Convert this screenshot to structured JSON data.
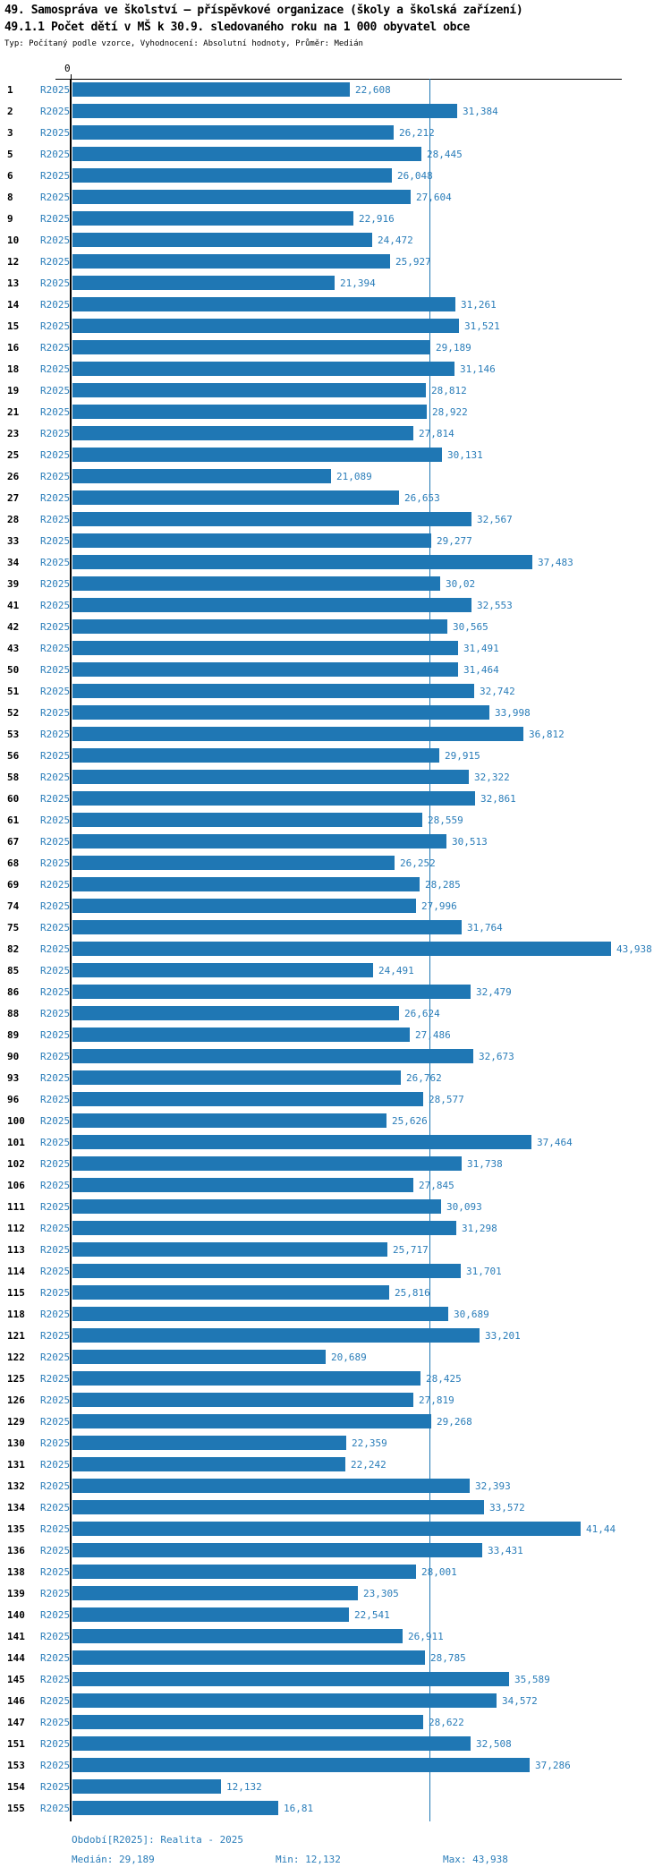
{
  "header": {
    "title1": "49. Samospráva ve školství – příspěvkové organizace (školy a školská zařízení)",
    "title2": "49.1.1 Počet dětí v MŠ k 30.9. sledovaného roku na 1 000 obyvatel obce",
    "subtitle": "Typ: Počítaný podle vzorce, Vyhodnocení: Absolutní hodnoty, Průměr: Medián"
  },
  "chart_data": {
    "type": "bar",
    "orientation": "horizontal",
    "series_label": "R2025",
    "zero_tick_label": "0",
    "xlim": [
      0,
      45
    ],
    "median": 29.189,
    "min": 12.132,
    "max": 43.938,
    "median_line": true,
    "categories": [
      "1",
      "2",
      "3",
      "5",
      "6",
      "8",
      "9",
      "10",
      "12",
      "13",
      "14",
      "15",
      "16",
      "18",
      "19",
      "21",
      "23",
      "25",
      "26",
      "27",
      "28",
      "33",
      "34",
      "39",
      "41",
      "42",
      "43",
      "50",
      "51",
      "52",
      "53",
      "56",
      "58",
      "60",
      "61",
      "67",
      "68",
      "69",
      "74",
      "75",
      "82",
      "85",
      "86",
      "88",
      "89",
      "90",
      "93",
      "96",
      "100",
      "101",
      "102",
      "106",
      "111",
      "112",
      "113",
      "114",
      "115",
      "118",
      "121",
      "122",
      "125",
      "126",
      "129",
      "130",
      "131",
      "132",
      "134",
      "135",
      "136",
      "138",
      "139",
      "140",
      "141",
      "144",
      "145",
      "146",
      "147",
      "151",
      "153",
      "154",
      "155"
    ],
    "values": [
      22.608,
      31.384,
      26.212,
      28.445,
      26.048,
      27.604,
      22.916,
      24.472,
      25.927,
      21.394,
      31.261,
      31.521,
      29.189,
      31.146,
      28.812,
      28.922,
      27.814,
      30.131,
      21.089,
      26.653,
      32.567,
      29.277,
      37.483,
      30.02,
      32.553,
      30.565,
      31.491,
      31.464,
      32.742,
      33.998,
      36.812,
      29.915,
      32.322,
      32.861,
      28.559,
      30.513,
      26.252,
      28.285,
      27.996,
      31.764,
      43.938,
      24.491,
      32.479,
      26.624,
      27.486,
      32.673,
      26.762,
      28.577,
      25.626,
      37.464,
      31.738,
      27.845,
      30.093,
      31.298,
      25.717,
      31.701,
      25.816,
      30.689,
      33.201,
      20.689,
      28.425,
      27.819,
      29.268,
      22.359,
      22.242,
      32.393,
      33.572,
      41.44,
      33.431,
      28.001,
      23.305,
      22.541,
      26.911,
      28.785,
      35.589,
      34.572,
      28.622,
      32.508,
      37.286,
      12.132,
      16.81
    ],
    "value_labels": [
      "22,608",
      "31,384",
      "26,212",
      "28,445",
      "26,048",
      "27,604",
      "22,916",
      "24,472",
      "25,927",
      "21,394",
      "31,261",
      "31,521",
      "29,189",
      "31,146",
      "28,812",
      "28,922",
      "27,814",
      "30,131",
      "21,089",
      "26,653",
      "32,567",
      "29,277",
      "37,483",
      "30,02",
      "32,553",
      "30,565",
      "31,491",
      "31,464",
      "32,742",
      "33,998",
      "36,812",
      "29,915",
      "32,322",
      "32,861",
      "28,559",
      "30,513",
      "26,252",
      "28,285",
      "27,996",
      "31,764",
      "43,938",
      "24,491",
      "32,479",
      "26,624",
      "27,486",
      "32,673",
      "26,762",
      "28,577",
      "25,626",
      "37,464",
      "31,738",
      "27,845",
      "30,093",
      "31,298",
      "25,717",
      "31,701",
      "25,816",
      "30,689",
      "33,201",
      "20,689",
      "28,425",
      "27,819",
      "29,268",
      "22,359",
      "22,242",
      "32,393",
      "33,572",
      "41,44",
      "33,431",
      "28,001",
      "23,305",
      "22,541",
      "26,911",
      "28,785",
      "35,589",
      "34,572",
      "28,622",
      "32,508",
      "37,286",
      "12,132",
      "16,81"
    ]
  },
  "footer": {
    "period_line": "Období[R2025]: Realita - 2025",
    "median_label": "Medián: 29,189",
    "min_label": "Min: 12,132",
    "max_label": "Max: 43,938"
  },
  "colors": {
    "bar": "#1f77b4",
    "blue_text": "#2a7db9",
    "axis": "#000000"
  }
}
